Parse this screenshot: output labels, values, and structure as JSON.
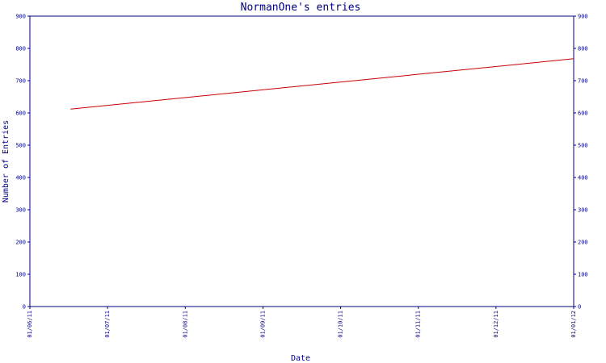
{
  "chart_data": {
    "type": "line",
    "title": "NormanOne's entries",
    "xlabel": "Date",
    "ylabel": "Number of Entries",
    "x_ticks": [
      "01/06/11",
      "01/07/11",
      "01/08/11",
      "01/09/11",
      "01/10/11",
      "01/11/11",
      "01/12/11",
      "01/01/12"
    ],
    "y_ticks": [
      "0",
      "100",
      "200",
      "300",
      "400",
      "500",
      "600",
      "700",
      "800",
      "900"
    ],
    "ylim": [
      0,
      900
    ],
    "xlim": [
      "2011-06-01",
      "2012-01-01"
    ],
    "grid": false,
    "right_axis": true,
    "series": [
      {
        "color": "#cc0000",
        "points": [
          {
            "x": "2011-06-17",
            "y": 612
          },
          {
            "x": "2012-01-01",
            "y": 768
          }
        ]
      }
    ]
  }
}
